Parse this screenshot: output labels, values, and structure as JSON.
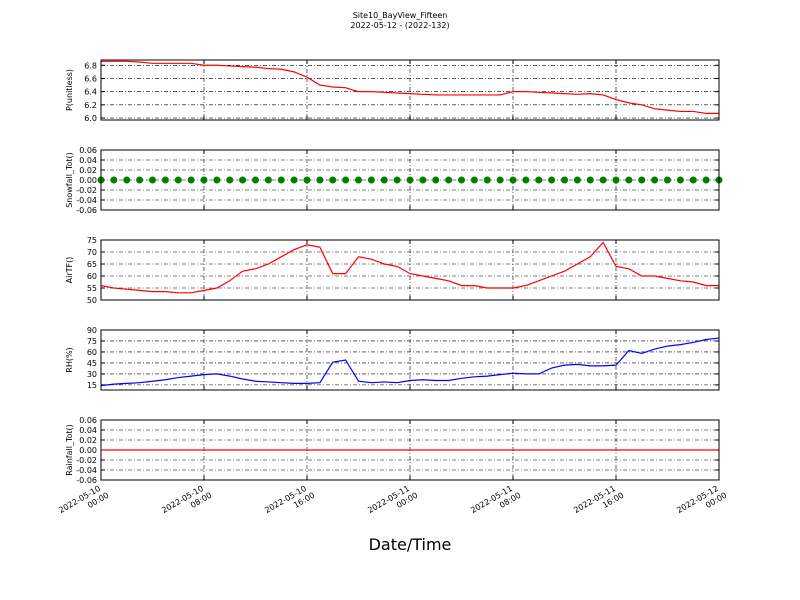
{
  "title": "Site10_BayView_Fifteen",
  "subtitle": "2022-05-12 - (2022-132)",
  "xlabel": "Date/Time",
  "x": [
    "2022-05-10 00:00",
    "2022-05-10 01:00",
    "2022-05-10 02:00",
    "2022-05-10 03:00",
    "2022-05-10 04:00",
    "2022-05-10 05:00",
    "2022-05-10 06:00",
    "2022-05-10 07:00",
    "2022-05-10 08:00",
    "2022-05-10 09:00",
    "2022-05-10 10:00",
    "2022-05-10 11:00",
    "2022-05-10 12:00",
    "2022-05-10 13:00",
    "2022-05-10 14:00",
    "2022-05-10 15:00",
    "2022-05-10 16:00",
    "2022-05-10 17:00",
    "2022-05-10 18:00",
    "2022-05-10 19:00",
    "2022-05-10 20:00",
    "2022-05-10 21:00",
    "2022-05-10 22:00",
    "2022-05-10 23:00",
    "2022-05-11 00:00",
    "2022-05-11 01:00",
    "2022-05-11 02:00",
    "2022-05-11 03:00",
    "2022-05-11 04:00",
    "2022-05-11 05:00",
    "2022-05-11 06:00",
    "2022-05-11 07:00",
    "2022-05-11 08:00",
    "2022-05-11 09:00",
    "2022-05-11 10:00",
    "2022-05-11 11:00",
    "2022-05-11 12:00",
    "2022-05-11 13:00",
    "2022-05-11 14:00",
    "2022-05-11 15:00",
    "2022-05-11 16:00",
    "2022-05-11 17:00",
    "2022-05-11 18:00",
    "2022-05-11 19:00",
    "2022-05-11 20:00",
    "2022-05-11 21:00",
    "2022-05-11 22:00",
    "2022-05-11 23:00",
    "2022-05-12 00:00"
  ],
  "xlim": [
    "2022-05-10 00:00",
    "2022-05-12 00:00"
  ],
  "xticks": [
    "2022-05-10 00:00",
    "2022-05-10 08:00",
    "2022-05-10 16:00",
    "2022-05-11 00:00",
    "2022-05-11 08:00",
    "2022-05-11 16:00",
    "2022-05-12 00:00"
  ],
  "chart_data": [
    {
      "type": "line",
      "ylabel": "P(unitless)",
      "grid": true,
      "ylim": [
        5.97,
        6.88
      ],
      "yticks": [
        {
          "value": 6.0,
          "label": "6.0"
        },
        {
          "value": 6.2,
          "label": "6.2"
        },
        {
          "value": 6.4,
          "label": "6.4"
        },
        {
          "value": 6.6,
          "label": "6.6"
        },
        {
          "value": 6.8,
          "label": "6.8"
        }
      ],
      "series": [
        {
          "color": "#ff0000",
          "values": [
            6.86,
            6.86,
            6.86,
            6.85,
            6.83,
            6.83,
            6.83,
            6.83,
            6.8,
            6.8,
            6.79,
            6.78,
            6.77,
            6.75,
            6.74,
            6.7,
            6.62,
            6.5,
            6.47,
            6.46,
            6.4,
            6.4,
            6.39,
            6.38,
            6.37,
            6.36,
            6.35,
            6.35,
            6.35,
            6.35,
            6.35,
            6.35,
            6.4,
            6.4,
            6.39,
            6.38,
            6.37,
            6.36,
            6.37,
            6.35,
            6.28,
            6.23,
            6.2,
            6.14,
            6.12,
            6.1,
            6.1,
            6.07,
            6.07
          ]
        }
      ]
    },
    {
      "type": "scatter",
      "ylabel": "Snowfall_Tot()",
      "grid": true,
      "ylim": [
        -0.06,
        0.06
      ],
      "yticks": [
        {
          "value": -0.06,
          "label": "-0.06"
        },
        {
          "value": -0.04,
          "label": "-0.04"
        },
        {
          "value": -0.02,
          "label": "-0.02"
        },
        {
          "value": 0,
          "label": "0.00"
        },
        {
          "value": 0.02,
          "label": "0.02"
        },
        {
          "value": 0.04,
          "label": "0.04"
        },
        {
          "value": 0.06,
          "label": "0.06"
        }
      ],
      "series": [
        {
          "color": "#008000",
          "values": [
            0,
            0,
            0,
            0,
            0,
            0,
            0,
            0,
            0,
            0,
            0,
            0,
            0,
            0,
            0,
            0,
            0,
            0,
            0,
            0,
            0,
            0,
            0,
            0,
            0,
            0,
            0,
            0,
            0,
            0,
            0,
            0,
            0,
            0,
            0,
            0,
            0,
            0,
            0,
            0,
            0,
            0,
            0,
            0,
            0,
            0,
            0,
            0,
            0
          ]
        }
      ]
    },
    {
      "type": "line",
      "ylabel": "AirTF()",
      "grid": true,
      "ylim": [
        50,
        75
      ],
      "yticks": [
        50,
        55,
        60,
        65,
        70,
        75
      ],
      "series": [
        {
          "color": "#ff0000",
          "values": [
            56,
            55,
            54.5,
            54,
            53.5,
            53.5,
            53,
            53,
            54,
            55,
            58,
            62,
            63,
            65,
            68,
            71,
            73,
            72,
            61,
            61,
            68,
            67,
            65,
            64,
            61,
            60,
            59,
            58,
            56,
            56,
            55,
            55,
            55,
            56,
            58,
            60,
            62,
            65,
            68,
            74,
            64,
            63,
            60,
            60,
            59,
            58,
            57.5,
            56,
            56
          ]
        }
      ]
    },
    {
      "type": "line",
      "ylabel": "RH(%)",
      "grid": true,
      "ylim": [
        8,
        90
      ],
      "yticks": [
        15,
        30,
        45,
        60,
        75,
        90
      ],
      "series": [
        {
          "color": "#0000ff",
          "values": [
            14,
            16,
            17,
            18,
            20,
            22,
            25,
            27,
            29,
            30,
            27,
            23,
            20,
            19,
            18,
            17,
            17,
            18,
            46,
            49,
            20,
            18,
            19,
            18,
            21,
            22,
            21,
            21,
            24,
            26,
            27,
            29,
            31,
            30,
            30,
            38,
            42,
            43,
            41,
            41,
            42,
            62,
            58,
            64,
            68,
            70,
            73,
            77,
            79
          ]
        }
      ]
    },
    {
      "type": "line",
      "ylabel": "Rainfall_Tot()",
      "grid": true,
      "ylim": [
        -0.06,
        0.06
      ],
      "yticks": [
        {
          "value": -0.06,
          "label": "-0.06"
        },
        {
          "value": -0.04,
          "label": "-0.04"
        },
        {
          "value": -0.02,
          "label": "-0.02"
        },
        {
          "value": 0,
          "label": "0.00"
        },
        {
          "value": 0.02,
          "label": "0.02"
        },
        {
          "value": 0.04,
          "label": "0.04"
        },
        {
          "value": 0.06,
          "label": "0.06"
        }
      ],
      "series": [
        {
          "color": "#ff0000",
          "values": [
            0,
            0,
            0,
            0,
            0,
            0,
            0,
            0,
            0,
            0,
            0,
            0,
            0,
            0,
            0,
            0,
            0,
            0,
            0,
            0,
            0,
            0,
            0,
            0,
            0,
            0,
            0,
            0,
            0,
            0,
            0,
            0,
            0,
            0,
            0,
            0,
            0,
            0,
            0,
            0,
            0,
            0,
            0,
            0,
            0,
            0,
            0,
            0,
            0
          ]
        }
      ]
    }
  ]
}
